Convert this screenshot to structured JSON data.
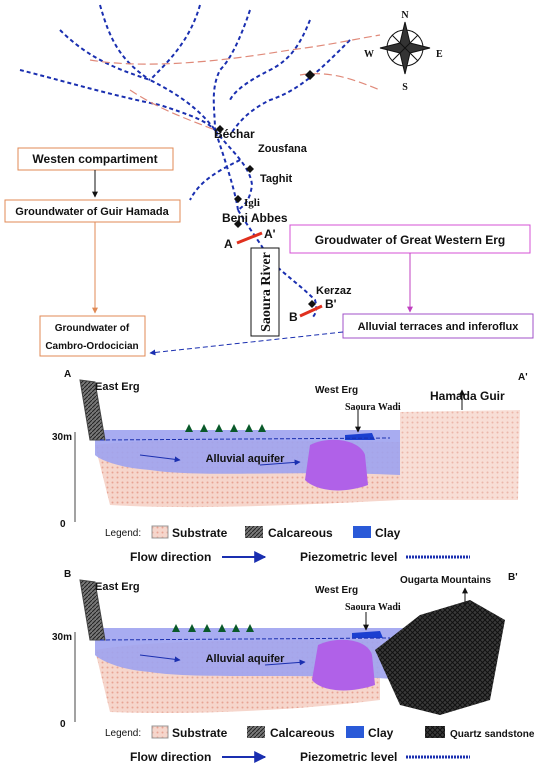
{
  "map": {
    "compass": {
      "n": "N",
      "e": "E",
      "s": "S",
      "w": "W"
    },
    "places": [
      "Béchar",
      "Zousfana",
      "Taghit",
      "Igli",
      "Beni Abbes",
      "Kerzaz"
    ],
    "section_marks": [
      "A",
      "A'",
      "B",
      "B'"
    ],
    "river": "Saoura River"
  },
  "boxes": {
    "western": "Westen compartiment",
    "guir": "Groundwater of Guir Hamada",
    "cambro": [
      "Groundwater of",
      "Cambro-Ordocician"
    ],
    "great_erg": "Groudwater of Great Western Erg",
    "alluvial": "Alluvial terraces and inferoflux"
  },
  "sections": [
    {
      "start": "A",
      "end": "A'",
      "east": "East Erg",
      "west": "West Erg",
      "wadi": "Saoura Wadi",
      "right": "Hamada Guir",
      "scale_top": "30m",
      "scale_bottom": "0",
      "aquifer": "Alluvial aquifer",
      "legend": {
        "title": "Legend:",
        "items": [
          "Substrate",
          "Calcareous",
          "Clay"
        ],
        "flow": "Flow direction",
        "piezo": "Piezometric level"
      }
    },
    {
      "start": "B",
      "end": "B'",
      "east": "East Erg",
      "west": "West Erg",
      "wadi": "Saoura Wadi",
      "right": "Ougarta Mountains",
      "scale_top": "30m",
      "scale_bottom": "0",
      "aquifer": "Alluvial aquifer",
      "legend": {
        "title": "Legend:",
        "items": [
          "Substrate",
          "Calcareous",
          "Clay",
          "Quartz sandstone"
        ],
        "flow": "Flow direction",
        "piezo": "Piezometric level"
      }
    }
  ]
}
